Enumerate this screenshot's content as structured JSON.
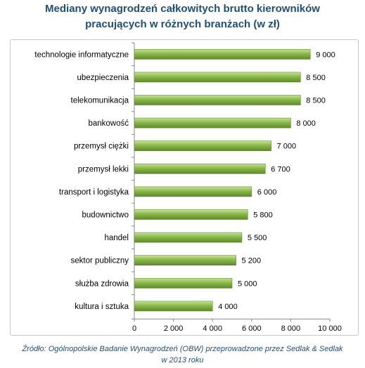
{
  "title_lines": [
    "Mediany wynagrodzeń całkowitych brutto kierowników",
    "pracujących w różnych branżach (w zł)"
  ],
  "source_lines": [
    "Źródło: Ogólnopolskie Badanie Wynagrodzeń (OBW) przeprowadzone przez Sedlak & Sedlak",
    "w 2013 roku"
  ],
  "colors": {
    "bar": "#8ab84a",
    "bar_light": "#c8e29a",
    "bar_dark": "#5e8a2a",
    "title": "#1f4e79",
    "axis": "#888888"
  },
  "chart_data": {
    "type": "bar",
    "orientation": "horizontal",
    "categories": [
      "technologie informatyczne",
      "ubezpieczenia",
      "telekomunikacja",
      "bankowość",
      "przemysł ciężki",
      "przemysł lekki",
      "transport i logistyka",
      "budownictwo",
      "handel",
      "sektor publiczny",
      "służba zdrowia",
      "kultura i sztuka"
    ],
    "values": [
      9000,
      8500,
      8500,
      8000,
      7000,
      6700,
      6000,
      5800,
      5500,
      5200,
      5000,
      4000
    ],
    "value_labels": [
      "9 000",
      "8 500",
      "8 500",
      "8 000",
      "7 000",
      "6 700",
      "6 000",
      "5 800",
      "5 500",
      "5 200",
      "5 000",
      "4 000"
    ],
    "x_ticks": [
      0,
      2000,
      4000,
      6000,
      8000,
      10000
    ],
    "x_tick_labels": [
      "0",
      "2 000",
      "4 000",
      "6 000",
      "8 000",
      "10 000"
    ],
    "xlim": [
      0,
      10000
    ],
    "grid": false,
    "legend": "none"
  }
}
